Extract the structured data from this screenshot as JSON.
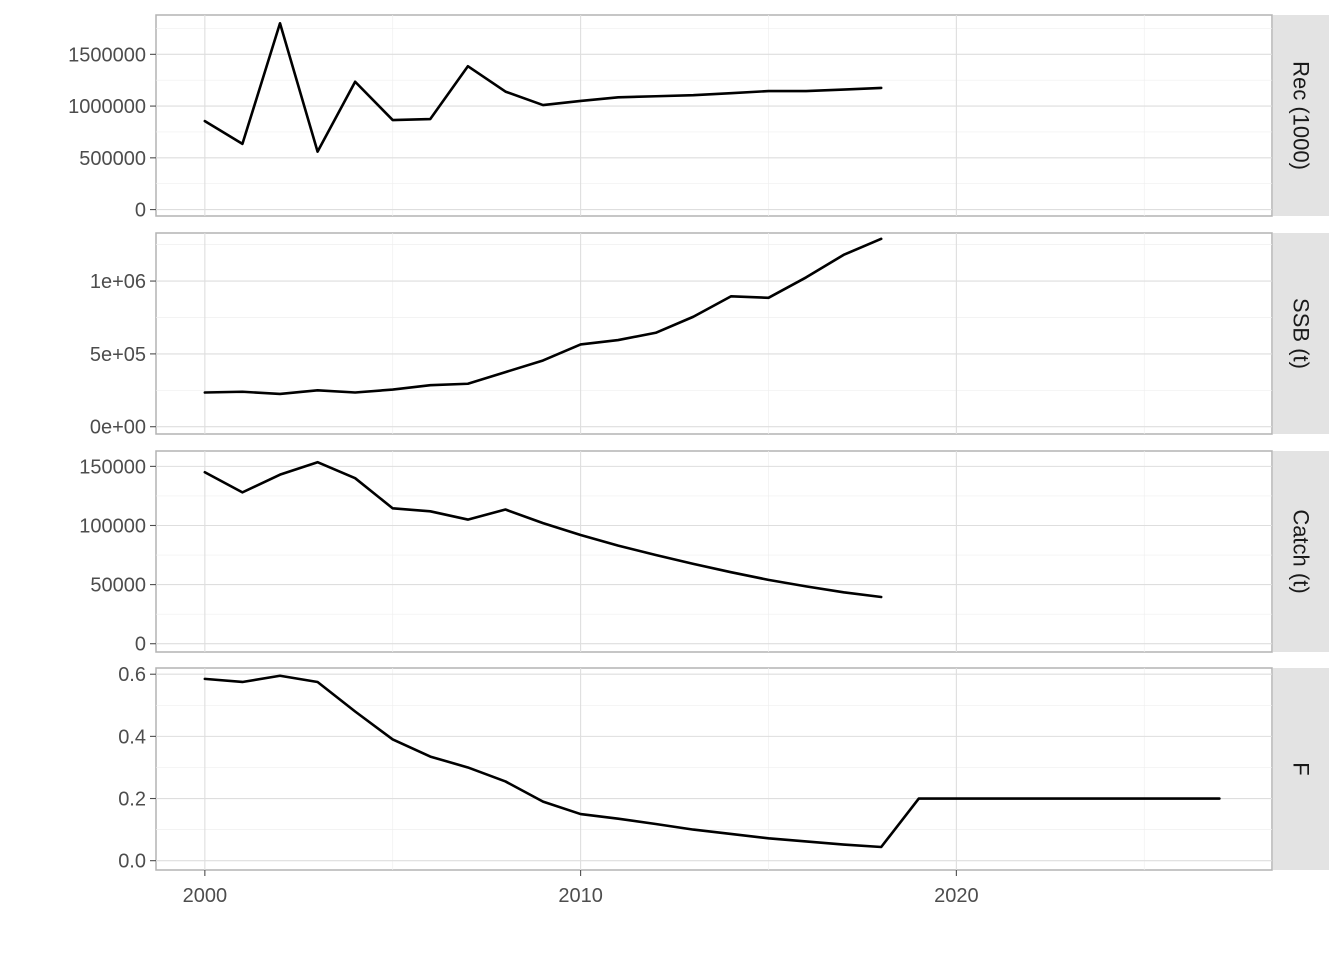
{
  "chart_data": {
    "type": "line",
    "x_axis": {
      "ticks": [
        2000,
        2010,
        2020
      ],
      "tick_labels": [
        "2000",
        "2010",
        "2020"
      ],
      "range": [
        1998.7,
        2028.4
      ]
    },
    "grid": true,
    "panels": [
      {
        "strip_label": "Rec (1000)",
        "ylim": [
          -62000,
          1880000
        ],
        "y_ticks": [
          0,
          500000,
          1000000,
          1500000
        ],
        "y_tick_labels": [
          "0",
          "500000",
          "1000000",
          "1500000"
        ],
        "x": [
          2000,
          2001,
          2002,
          2003,
          2004,
          2005,
          2006,
          2007,
          2008,
          2009,
          2010,
          2011,
          2012,
          2013,
          2014,
          2015,
          2016,
          2017,
          2018
        ],
        "values": [
          855000,
          635000,
          1800000,
          560000,
          1235000,
          865000,
          875000,
          1385000,
          1140000,
          1010000,
          1050000,
          1085000,
          1095000,
          1105000,
          1125000,
          1145000,
          1145000,
          1160000,
          1175000
        ]
      },
      {
        "strip_label": "SSB (t)",
        "ylim": [
          -50000,
          1330000
        ],
        "y_ticks": [
          0,
          500000,
          1000000
        ],
        "y_tick_labels": [
          "0e+00",
          "5e+05",
          "1e+06"
        ],
        "x": [
          2000,
          2001,
          2002,
          2003,
          2004,
          2005,
          2006,
          2007,
          2008,
          2009,
          2010,
          2011,
          2012,
          2013,
          2014,
          2015,
          2016,
          2017,
          2018
        ],
        "values": [
          235000,
          240000,
          225000,
          250000,
          235000,
          255000,
          285000,
          295000,
          375000,
          455000,
          565000,
          595000,
          645000,
          755000,
          895000,
          885000,
          1025000,
          1180000,
          1290000
        ]
      },
      {
        "strip_label": "Catch (t)",
        "ylim": [
          -7000,
          163000
        ],
        "y_ticks": [
          0,
          50000,
          100000,
          150000
        ],
        "y_tick_labels": [
          "0",
          "50000",
          "100000",
          "150000"
        ],
        "x": [
          2000,
          2001,
          2002,
          2003,
          2004,
          2005,
          2006,
          2007,
          2008,
          2009,
          2010,
          2011,
          2012,
          2013,
          2014,
          2015,
          2016,
          2017,
          2018
        ],
        "values": [
          145000,
          128000,
          143000,
          153500,
          140000,
          114500,
          112000,
          105000,
          113500,
          102000,
          92000,
          83000,
          75000,
          67500,
          60500,
          54000,
          48500,
          43500,
          39500
        ]
      },
      {
        "strip_label": "F",
        "ylim": [
          -0.03,
          0.62
        ],
        "y_ticks": [
          0.0,
          0.2,
          0.4,
          0.6
        ],
        "y_tick_labels": [
          "0.0",
          "0.2",
          "0.4",
          "0.6"
        ],
        "x": [
          2000,
          2001,
          2002,
          2003,
          2004,
          2005,
          2006,
          2007,
          2008,
          2009,
          2010,
          2011,
          2012,
          2013,
          2014,
          2015,
          2016,
          2017,
          2018,
          2019,
          2020,
          2021,
          2022,
          2023,
          2024,
          2025,
          2026,
          2027
        ],
        "values": [
          0.585,
          0.575,
          0.595,
          0.575,
          0.48,
          0.39,
          0.335,
          0.3,
          0.255,
          0.19,
          0.15,
          0.135,
          0.118,
          0.1,
          0.086,
          0.072,
          0.062,
          0.052,
          0.044,
          0.2,
          0.2,
          0.2,
          0.2,
          0.2,
          0.2,
          0.2,
          0.2,
          0.2
        ]
      }
    ]
  }
}
